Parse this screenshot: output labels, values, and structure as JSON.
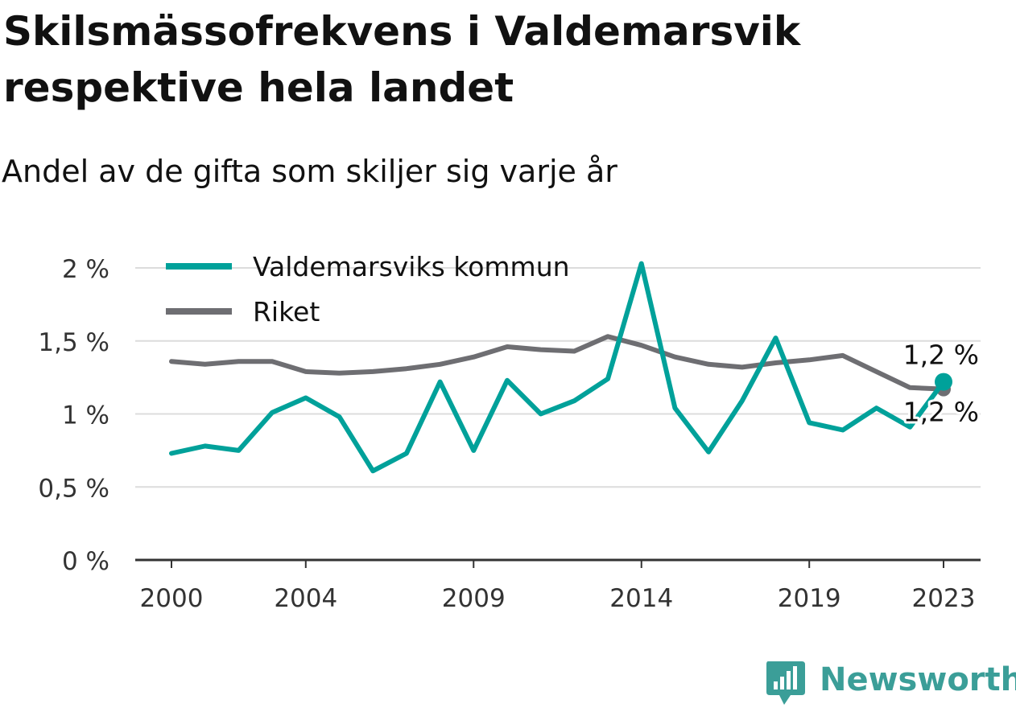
{
  "title": "Skilsmässofrekvens i Valdemarsvik respektive hela landet",
  "subtitle": "Andel av de gifta som skiljer sig varje år",
  "brand": {
    "name": "Newsworthy",
    "icon": "newsworthy-logo-icon",
    "color": "#3b9e98"
  },
  "chart_data": {
    "type": "line",
    "x": [
      2000,
      2001,
      2002,
      2003,
      2004,
      2005,
      2006,
      2007,
      2008,
      2009,
      2010,
      2011,
      2012,
      2013,
      2014,
      2015,
      2016,
      2017,
      2018,
      2019,
      2020,
      2021,
      2022,
      2023
    ],
    "x_ticks": [
      2000,
      2004,
      2009,
      2014,
      2019,
      2023
    ],
    "x_tick_labels": [
      "2000",
      "2004",
      "2009",
      "2014",
      "2019",
      "2023"
    ],
    "ylim": [
      0,
      2.05
    ],
    "y_ticks": [
      0,
      0.5,
      1,
      1.5,
      2
    ],
    "y_tick_labels": [
      "0 %",
      "0,5 %",
      "1 %",
      "1,5 %",
      "2 %"
    ],
    "grid": true,
    "legend": "top-left",
    "series": [
      {
        "name": "Valdemarsviks kommun",
        "color": "#00a19a",
        "values": [
          0.73,
          0.78,
          0.75,
          1.01,
          1.11,
          0.98,
          0.61,
          0.73,
          1.22,
          0.75,
          1.23,
          1.0,
          1.09,
          1.24,
          2.03,
          1.04,
          0.74,
          1.09,
          1.52,
          0.94,
          0.89,
          1.04,
          0.91,
          1.22
        ],
        "end_label": "1,2 %"
      },
      {
        "name": "Riket",
        "color": "#6e6e72",
        "values": [
          1.36,
          1.34,
          1.36,
          1.36,
          1.29,
          1.28,
          1.29,
          1.31,
          1.34,
          1.39,
          1.46,
          1.44,
          1.43,
          1.53,
          1.47,
          1.39,
          1.34,
          1.32,
          1.35,
          1.37,
          1.4,
          1.29,
          1.18,
          1.17
        ],
        "end_label": "1,2 %"
      }
    ]
  }
}
